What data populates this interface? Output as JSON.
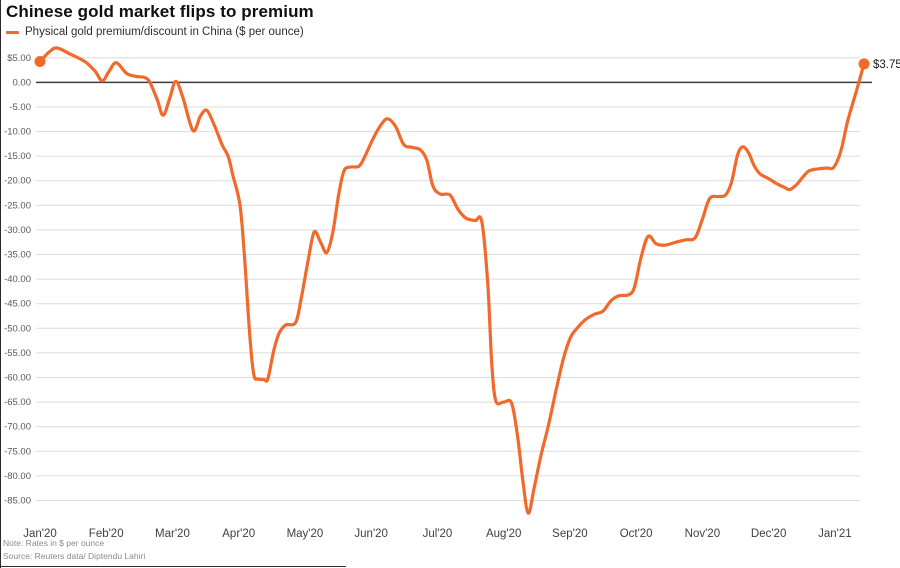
{
  "title": "Chinese gold market flips to premium",
  "legend": {
    "label": "Physical gold premium/discount in China ($ per ounce)"
  },
  "note": "Note: Rates in $ per ounce",
  "source": "Source: Reuters data/ Diptendu Lahiri",
  "colors": {
    "line": "#f2692c",
    "grid": "#dcdcdc",
    "zero_line": "#3c3c3c",
    "tick_text": "#595959",
    "x_tick_text": "#404040",
    "annotation_text": "#1a1a1a"
  },
  "chart_data": {
    "type": "line",
    "title": "Chinese gold market flips to premium",
    "series_name": "Physical gold premium/discount in China ($ per ounce)",
    "xlabel": "",
    "ylabel": "$ per ounce",
    "ylim": [
      -90.5,
      7.6
    ],
    "xlim_months": [
      -0.06,
      12.5
    ],
    "grid": true,
    "zero_line": true,
    "legend_position": "top-left",
    "end_label": "$3.75",
    "start_value": 4.25,
    "end_value": 3.75,
    "y_ticks": [
      {
        "label": "$5.00",
        "v": 5
      },
      {
        "label": "0.00",
        "v": 0
      },
      {
        "label": "-5.00",
        "v": -5
      },
      {
        "label": "-10.00",
        "v": -10
      },
      {
        "label": "-15.00",
        "v": -15
      },
      {
        "label": "-20.00",
        "v": -20
      },
      {
        "label": "-25.00",
        "v": -25
      },
      {
        "label": "-30.00",
        "v": -30
      },
      {
        "label": "-35.00",
        "v": -35
      },
      {
        "label": "-40.00",
        "v": -40
      },
      {
        "label": "-45.00",
        "v": -45
      },
      {
        "label": "-50.00",
        "v": -50
      },
      {
        "label": "-55.00",
        "v": -55
      },
      {
        "label": "-60.00",
        "v": -60
      },
      {
        "label": "-65.00",
        "v": -65
      },
      {
        "label": "-70.00",
        "v": -70
      },
      {
        "label": "-75.00",
        "v": -75
      },
      {
        "label": "-80.00",
        "v": -80
      },
      {
        "label": "-85.00",
        "v": -85
      }
    ],
    "x_ticks": [
      {
        "label": "Jan'20",
        "m": 0
      },
      {
        "label": "Feb'20",
        "m": 1
      },
      {
        "label": "Mar'20",
        "m": 2
      },
      {
        "label": "Apr'20",
        "m": 3
      },
      {
        "label": "May'20",
        "m": 4
      },
      {
        "label": "Jun'20",
        "m": 5
      },
      {
        "label": "Jul'20",
        "m": 6
      },
      {
        "label": "Aug'20",
        "m": 7
      },
      {
        "label": "Sep'20",
        "m": 8
      },
      {
        "label": "Oct'20",
        "m": 9
      },
      {
        "label": "Nov'20",
        "m": 10
      },
      {
        "label": "Dec'20",
        "m": 11
      },
      {
        "label": "Jan'21",
        "m": 12
      }
    ],
    "points": [
      [
        0.0,
        4.25
      ],
      [
        0.15,
        6.3
      ],
      [
        0.26,
        7.0
      ],
      [
        0.45,
        5.8
      ],
      [
        0.68,
        4.2
      ],
      [
        0.83,
        2.3
      ],
      [
        0.94,
        0.3
      ],
      [
        1.04,
        2.2
      ],
      [
        1.15,
        4.0
      ],
      [
        1.31,
        1.8
      ],
      [
        1.46,
        1.2
      ],
      [
        1.58,
        1.0
      ],
      [
        1.66,
        0.0
      ],
      [
        1.77,
        -3.5
      ],
      [
        1.86,
        -6.7
      ],
      [
        1.96,
        -3.2
      ],
      [
        2.05,
        0.2
      ],
      [
        2.16,
        -3.2
      ],
      [
        2.31,
        -9.8
      ],
      [
        2.42,
        -6.9
      ],
      [
        2.52,
        -5.7
      ],
      [
        2.64,
        -9.0
      ],
      [
        2.75,
        -12.7
      ],
      [
        2.84,
        -15.0
      ],
      [
        2.91,
        -18.8
      ],
      [
        3.02,
        -25.0
      ],
      [
        3.09,
        -36.0
      ],
      [
        3.17,
        -52.0
      ],
      [
        3.23,
        -59.5
      ],
      [
        3.29,
        -60.3
      ],
      [
        3.38,
        -60.4
      ],
      [
        3.44,
        -60.3
      ],
      [
        3.53,
        -54.5
      ],
      [
        3.61,
        -51.0
      ],
      [
        3.71,
        -49.3
      ],
      [
        3.86,
        -48.8
      ],
      [
        3.95,
        -43.5
      ],
      [
        4.05,
        -36.0
      ],
      [
        4.14,
        -30.4
      ],
      [
        4.24,
        -32.6
      ],
      [
        4.33,
        -34.6
      ],
      [
        4.42,
        -30.5
      ],
      [
        4.51,
        -22.8
      ],
      [
        4.59,
        -18.0
      ],
      [
        4.69,
        -17.2
      ],
      [
        4.82,
        -17.0
      ],
      [
        4.92,
        -14.6
      ],
      [
        5.03,
        -11.4
      ],
      [
        5.15,
        -8.6
      ],
      [
        5.25,
        -7.4
      ],
      [
        5.37,
        -9.0
      ],
      [
        5.49,
        -12.6
      ],
      [
        5.61,
        -13.2
      ],
      [
        5.74,
        -13.7
      ],
      [
        5.84,
        -15.8
      ],
      [
        5.93,
        -21.0
      ],
      [
        6.04,
        -22.7
      ],
      [
        6.19,
        -22.9
      ],
      [
        6.31,
        -25.8
      ],
      [
        6.43,
        -27.6
      ],
      [
        6.57,
        -28.1
      ],
      [
        6.67,
        -28.3
      ],
      [
        6.76,
        -41.0
      ],
      [
        6.82,
        -57.0
      ],
      [
        6.88,
        -64.7
      ],
      [
        7.0,
        -65.0
      ],
      [
        7.12,
        -65.2
      ],
      [
        7.21,
        -72.0
      ],
      [
        7.29,
        -81.0
      ],
      [
        7.37,
        -87.6
      ],
      [
        7.46,
        -82.5
      ],
      [
        7.56,
        -76.0
      ],
      [
        7.68,
        -69.5
      ],
      [
        7.8,
        -62.0
      ],
      [
        7.91,
        -55.8
      ],
      [
        8.01,
        -51.8
      ],
      [
        8.12,
        -49.8
      ],
      [
        8.23,
        -48.3
      ],
      [
        8.36,
        -47.2
      ],
      [
        8.5,
        -46.5
      ],
      [
        8.62,
        -44.4
      ],
      [
        8.74,
        -43.4
      ],
      [
        8.88,
        -43.2
      ],
      [
        8.97,
        -41.8
      ],
      [
        9.07,
        -35.8
      ],
      [
        9.18,
        -31.3
      ],
      [
        9.3,
        -32.8
      ],
      [
        9.43,
        -33.1
      ],
      [
        9.6,
        -32.5
      ],
      [
        9.75,
        -32.0
      ],
      [
        9.89,
        -31.6
      ],
      [
        10.0,
        -27.8
      ],
      [
        10.11,
        -23.6
      ],
      [
        10.25,
        -23.2
      ],
      [
        10.35,
        -22.9
      ],
      [
        10.44,
        -20.3
      ],
      [
        10.53,
        -14.8
      ],
      [
        10.61,
        -13.1
      ],
      [
        10.7,
        -14.4
      ],
      [
        10.78,
        -16.9
      ],
      [
        10.87,
        -18.6
      ],
      [
        10.99,
        -19.5
      ],
      [
        11.11,
        -20.5
      ],
      [
        11.23,
        -21.3
      ],
      [
        11.32,
        -21.8
      ],
      [
        11.42,
        -20.8
      ],
      [
        11.52,
        -19.2
      ],
      [
        11.61,
        -18.0
      ],
      [
        11.74,
        -17.6
      ],
      [
        11.88,
        -17.4
      ],
      [
        11.98,
        -17.3
      ],
      [
        12.09,
        -14.0
      ],
      [
        12.19,
        -8.0
      ],
      [
        12.32,
        -2.0
      ],
      [
        12.44,
        3.75
      ]
    ]
  }
}
